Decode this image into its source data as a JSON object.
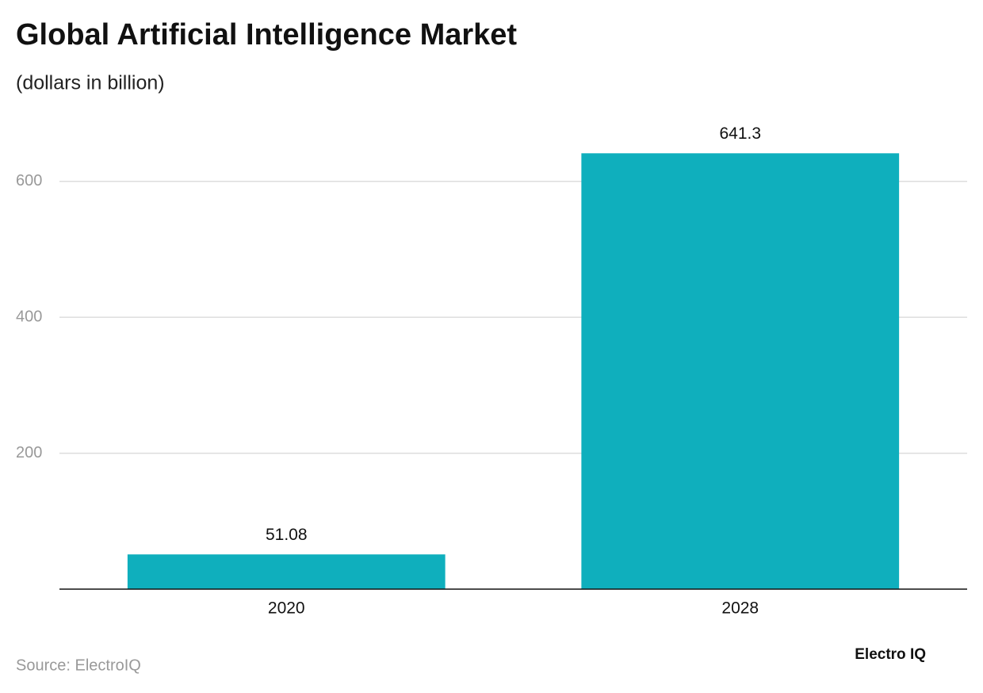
{
  "chart_data": {
    "type": "bar",
    "title": "Global Artificial Intelligence Market",
    "subtitle": "(dollars in billion)",
    "categories": [
      "2020",
      "2028"
    ],
    "values": [
      51.08,
      641.3
    ],
    "color": "#0fafbd",
    "ylim": [
      0,
      700
    ],
    "yticks": [
      200,
      400,
      600
    ],
    "grid": true,
    "source": "Source: ElectroIQ",
    "logo": "Electro IQ"
  }
}
